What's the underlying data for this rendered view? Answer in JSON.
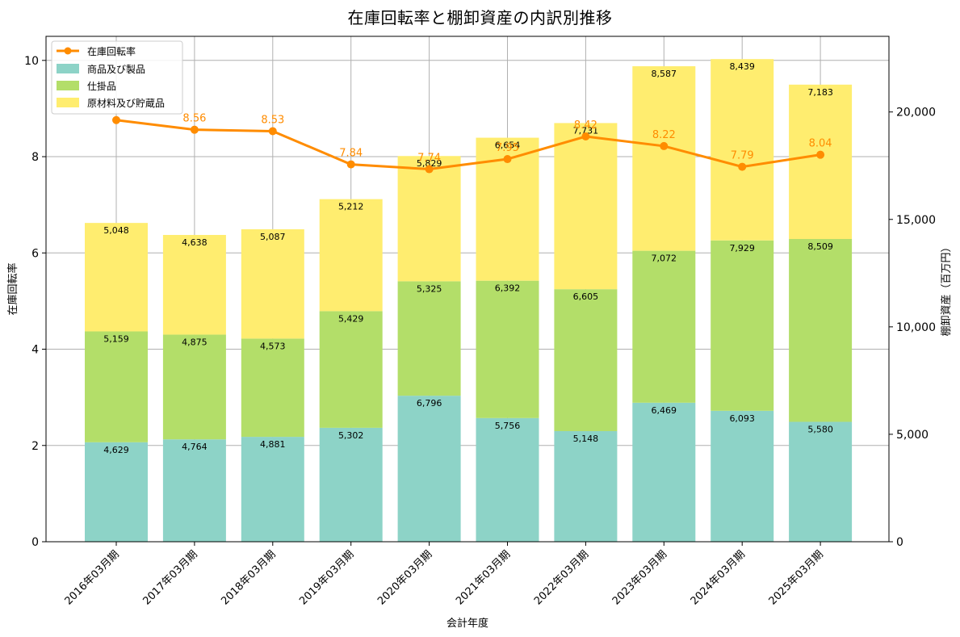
{
  "chart_data": {
    "type": "bar",
    "title": "在庫回転率と棚卸資産の内訳別推移",
    "xlabel": "会計年度",
    "ylabel_left": "在庫回転率",
    "ylabel_right": "棚卸資産（百万円）",
    "categories": [
      "2016年03月期",
      "2017年03月期",
      "2018年03月期",
      "2019年03月期",
      "2020年03月期",
      "2021年03月期",
      "2022年03月期",
      "2023年03月期",
      "2024年03月期",
      "2025年03月期"
    ],
    "left_axis": {
      "ylim": [
        0,
        10.5
      ],
      "ticks": [
        "0",
        "2",
        "4",
        "6",
        "8",
        "10"
      ]
    },
    "right_axis": {
      "ylim": [
        0,
        23520
      ],
      "ticks": [
        "0",
        "5,000",
        "10,000",
        "15,000",
        "20,000"
      ]
    },
    "stacked_series": [
      {
        "name": "商品及び製品",
        "color": "#8dd3c7",
        "values": [
          4629,
          4764,
          4881,
          5302,
          6796,
          5756,
          5148,
          6469,
          6093,
          5580
        ],
        "labels": [
          "4,629",
          "4,764",
          "4,881",
          "5,302",
          "6,796",
          "5,756",
          "5,148",
          "6,469",
          "6,093",
          "5,580"
        ]
      },
      {
        "name": "仕掛品",
        "color": "#b3de69",
        "values": [
          5159,
          4875,
          4573,
          5429,
          5325,
          6392,
          6605,
          7072,
          7929,
          8509
        ],
        "labels": [
          "5,159",
          "4,875",
          "4,573",
          "5,429",
          "5,325",
          "6,392",
          "6,605",
          "7,072",
          "7,929",
          "8,509"
        ]
      },
      {
        "name": "原材料及び貯蔵品",
        "color": "#ffed6f",
        "values": [
          5048,
          4638,
          5087,
          5212,
          5829,
          6654,
          7731,
          8587,
          8439,
          7183
        ],
        "labels": [
          "5,048",
          "4,638",
          "5,087",
          "5,212",
          "5,829",
          "6,654",
          "7,731",
          "8,587",
          "8,439",
          "7,183"
        ]
      }
    ],
    "line_series": {
      "name": "在庫回転率",
      "color": "#ff8c00",
      "values": [
        8.76,
        8.56,
        8.53,
        7.84,
        7.74,
        7.95,
        8.42,
        8.22,
        7.79,
        8.04
      ],
      "labels": [
        "",
        "8.56",
        "8.53",
        "7.84",
        "7.74",
        "7.95",
        "8.42",
        "8.22",
        "7.79",
        "8.04"
      ]
    },
    "grid": true,
    "legend_position": "top-left"
  }
}
